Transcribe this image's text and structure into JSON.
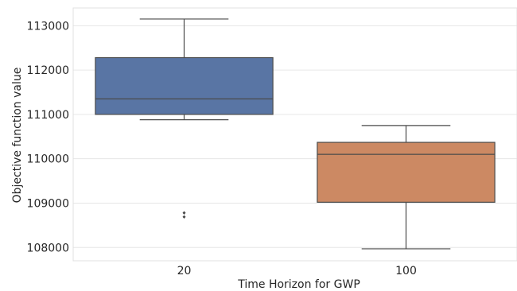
{
  "chart_data": {
    "type": "box",
    "title": "",
    "xlabel": "Time Horizon for GWP",
    "ylabel": "Objective function value",
    "ylim": [
      107700,
      113400
    ],
    "yticks": [
      108000,
      109000,
      110000,
      111000,
      112000,
      113000
    ],
    "yticklabels": [
      "108000",
      "109000",
      "110000",
      "111000",
      "112000",
      "113000"
    ],
    "grid": true,
    "categories": [
      "20",
      "100"
    ],
    "boxes": [
      {
        "category": "20",
        "whisker_low": 110880,
        "q1": 111000,
        "median": 111350,
        "q3": 112280,
        "whisker_high": 113150,
        "outliers": [
          108780,
          108690
        ],
        "color": "#5975a4"
      },
      {
        "category": "100",
        "whisker_low": 107970,
        "q1": 109020,
        "median": 110100,
        "q3": 110370,
        "whisker_high": 110750,
        "outliers": [],
        "color": "#cc8963"
      }
    ]
  }
}
